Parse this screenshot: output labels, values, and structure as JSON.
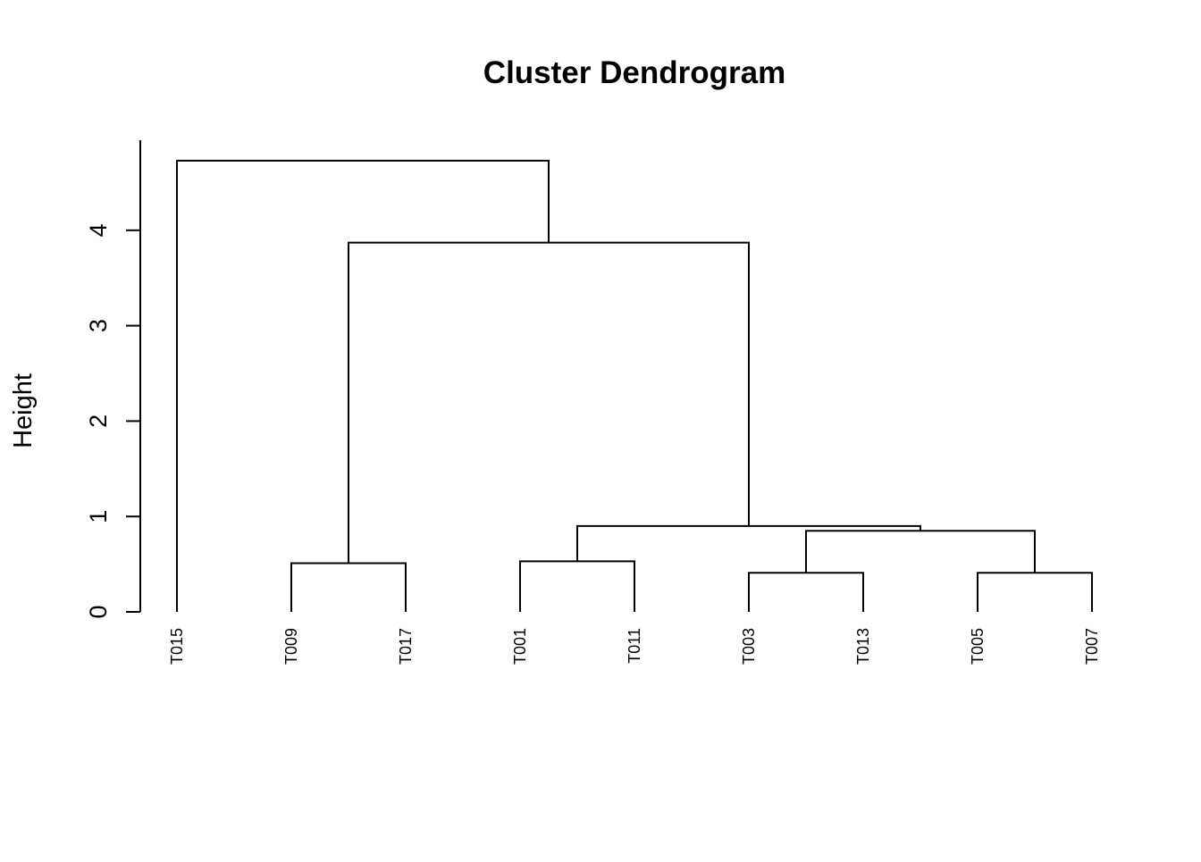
{
  "chart_data": {
    "type": "dendrogram",
    "title": "Cluster Dendrogram",
    "ylabel": "Height",
    "xlabel": "",
    "ylim": [
      0,
      4.8
    ],
    "y_ticks": [
      0,
      1,
      2,
      3,
      4
    ],
    "y_tick_labels": [
      "0",
      "1",
      "2",
      "3",
      "4"
    ],
    "grid": false,
    "leaves": [
      "T015",
      "T009",
      "T017",
      "T001",
      "T011",
      "T003",
      "T013",
      "T005",
      "T007"
    ],
    "merges": [
      {
        "id": "m1",
        "left": "T009",
        "right": "T017",
        "height": 0.51
      },
      {
        "id": "m2",
        "left": "T001",
        "right": "T011",
        "height": 0.53
      },
      {
        "id": "m3",
        "left": "T003",
        "right": "T013",
        "height": 0.41
      },
      {
        "id": "m4",
        "left": "T005",
        "right": "T007",
        "height": 0.41
      },
      {
        "id": "m5",
        "left": "m3",
        "right": "m4",
        "height": 0.85
      },
      {
        "id": "m6",
        "left": "m2",
        "right": "m5",
        "height": 0.9
      },
      {
        "id": "m7",
        "left": "m1",
        "right": "m6",
        "height": 3.87
      },
      {
        "id": "m8",
        "left": "T015",
        "right": "m7",
        "height": 4.73
      }
    ],
    "colors": {
      "line": "#000000",
      "background": "#ffffff"
    }
  }
}
